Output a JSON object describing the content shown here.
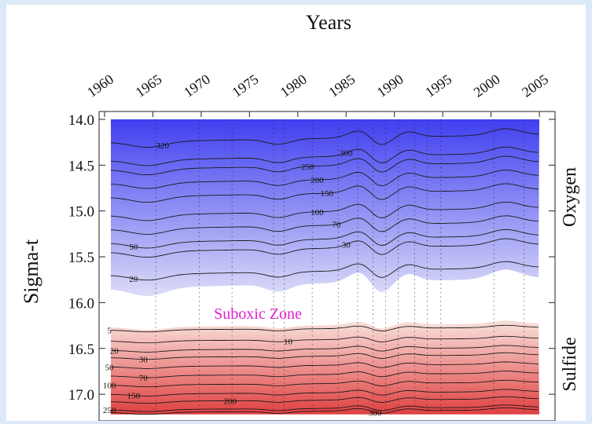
{
  "chart_data": {
    "type": "contour",
    "title": "",
    "x_axis": {
      "label": "Years",
      "position": "top",
      "ticks": [
        "1960",
        "1965",
        "1970",
        "1975",
        "1980",
        "1985",
        "1990",
        "1995",
        "2000",
        "2005"
      ],
      "range": [
        1960,
        2005
      ]
    },
    "y_axis": {
      "label": "Sigma-t",
      "inverted": true,
      "ticks": [
        "14.0",
        "14.5",
        "15.0",
        "15.5",
        "16.0",
        "16.5",
        "17.0"
      ],
      "range": [
        14.0,
        17.2
      ]
    },
    "right_labels": [
      "Oxygen",
      "Sulfide"
    ],
    "zone_label": "Suboxic Zone",
    "colors": {
      "oxygen_high": "#3f3ff0",
      "oxygen_low": "#dcdcf8",
      "sulfide_low": "#f9e1dc",
      "sulfide_high": "#e04040",
      "zone_label": "#e020d0"
    },
    "oxygen_contours": [
      {
        "level": "320",
        "depth": 14.25,
        "label_year": 1966
      },
      {
        "level": "300",
        "depth": 14.45,
        "label_year": 1985
      },
      {
        "level": "250",
        "depth": 14.55,
        "label_year": 1981
      },
      {
        "level": "200",
        "depth": 14.7,
        "label_year": 1982
      },
      {
        "level": "150",
        "depth": 14.85,
        "label_year": 1983
      },
      {
        "level": "100",
        "depth": 15.05,
        "label_year": 1982
      },
      {
        "level": "70",
        "depth": 15.2,
        "label_year": 1984
      },
      {
        "level": "50",
        "depth": 15.35,
        "label_year": 1963
      },
      {
        "level": "30",
        "depth": 15.45,
        "label_year": 1985
      },
      {
        "level": "20",
        "depth": 15.7,
        "label_year": 1963
      }
    ],
    "sulfide_contours": [
      {
        "level": "5",
        "depth": 16.3,
        "label_year": 1960.5
      },
      {
        "level": "10",
        "depth": 16.42,
        "label_year": 1979
      },
      {
        "level": "20",
        "depth": 16.52,
        "label_year": 1961
      },
      {
        "level": "30",
        "depth": 16.6,
        "label_year": 1964
      },
      {
        "level": "50",
        "depth": 16.7,
        "label_year": 1960.5
      },
      {
        "level": "70",
        "depth": 16.8,
        "label_year": 1964
      },
      {
        "level": "100",
        "depth": 16.9,
        "label_year": 1960.5
      },
      {
        "level": "150",
        "depth": 17.0,
        "label_year": 1963
      },
      {
        "level": "200",
        "depth": 17.08,
        "label_year": 1973
      },
      {
        "level": "250",
        "depth": 17.17,
        "label_year": 1960.5
      },
      {
        "level": "300",
        "depth": 17.2,
        "label_year": 1988
      }
    ]
  }
}
